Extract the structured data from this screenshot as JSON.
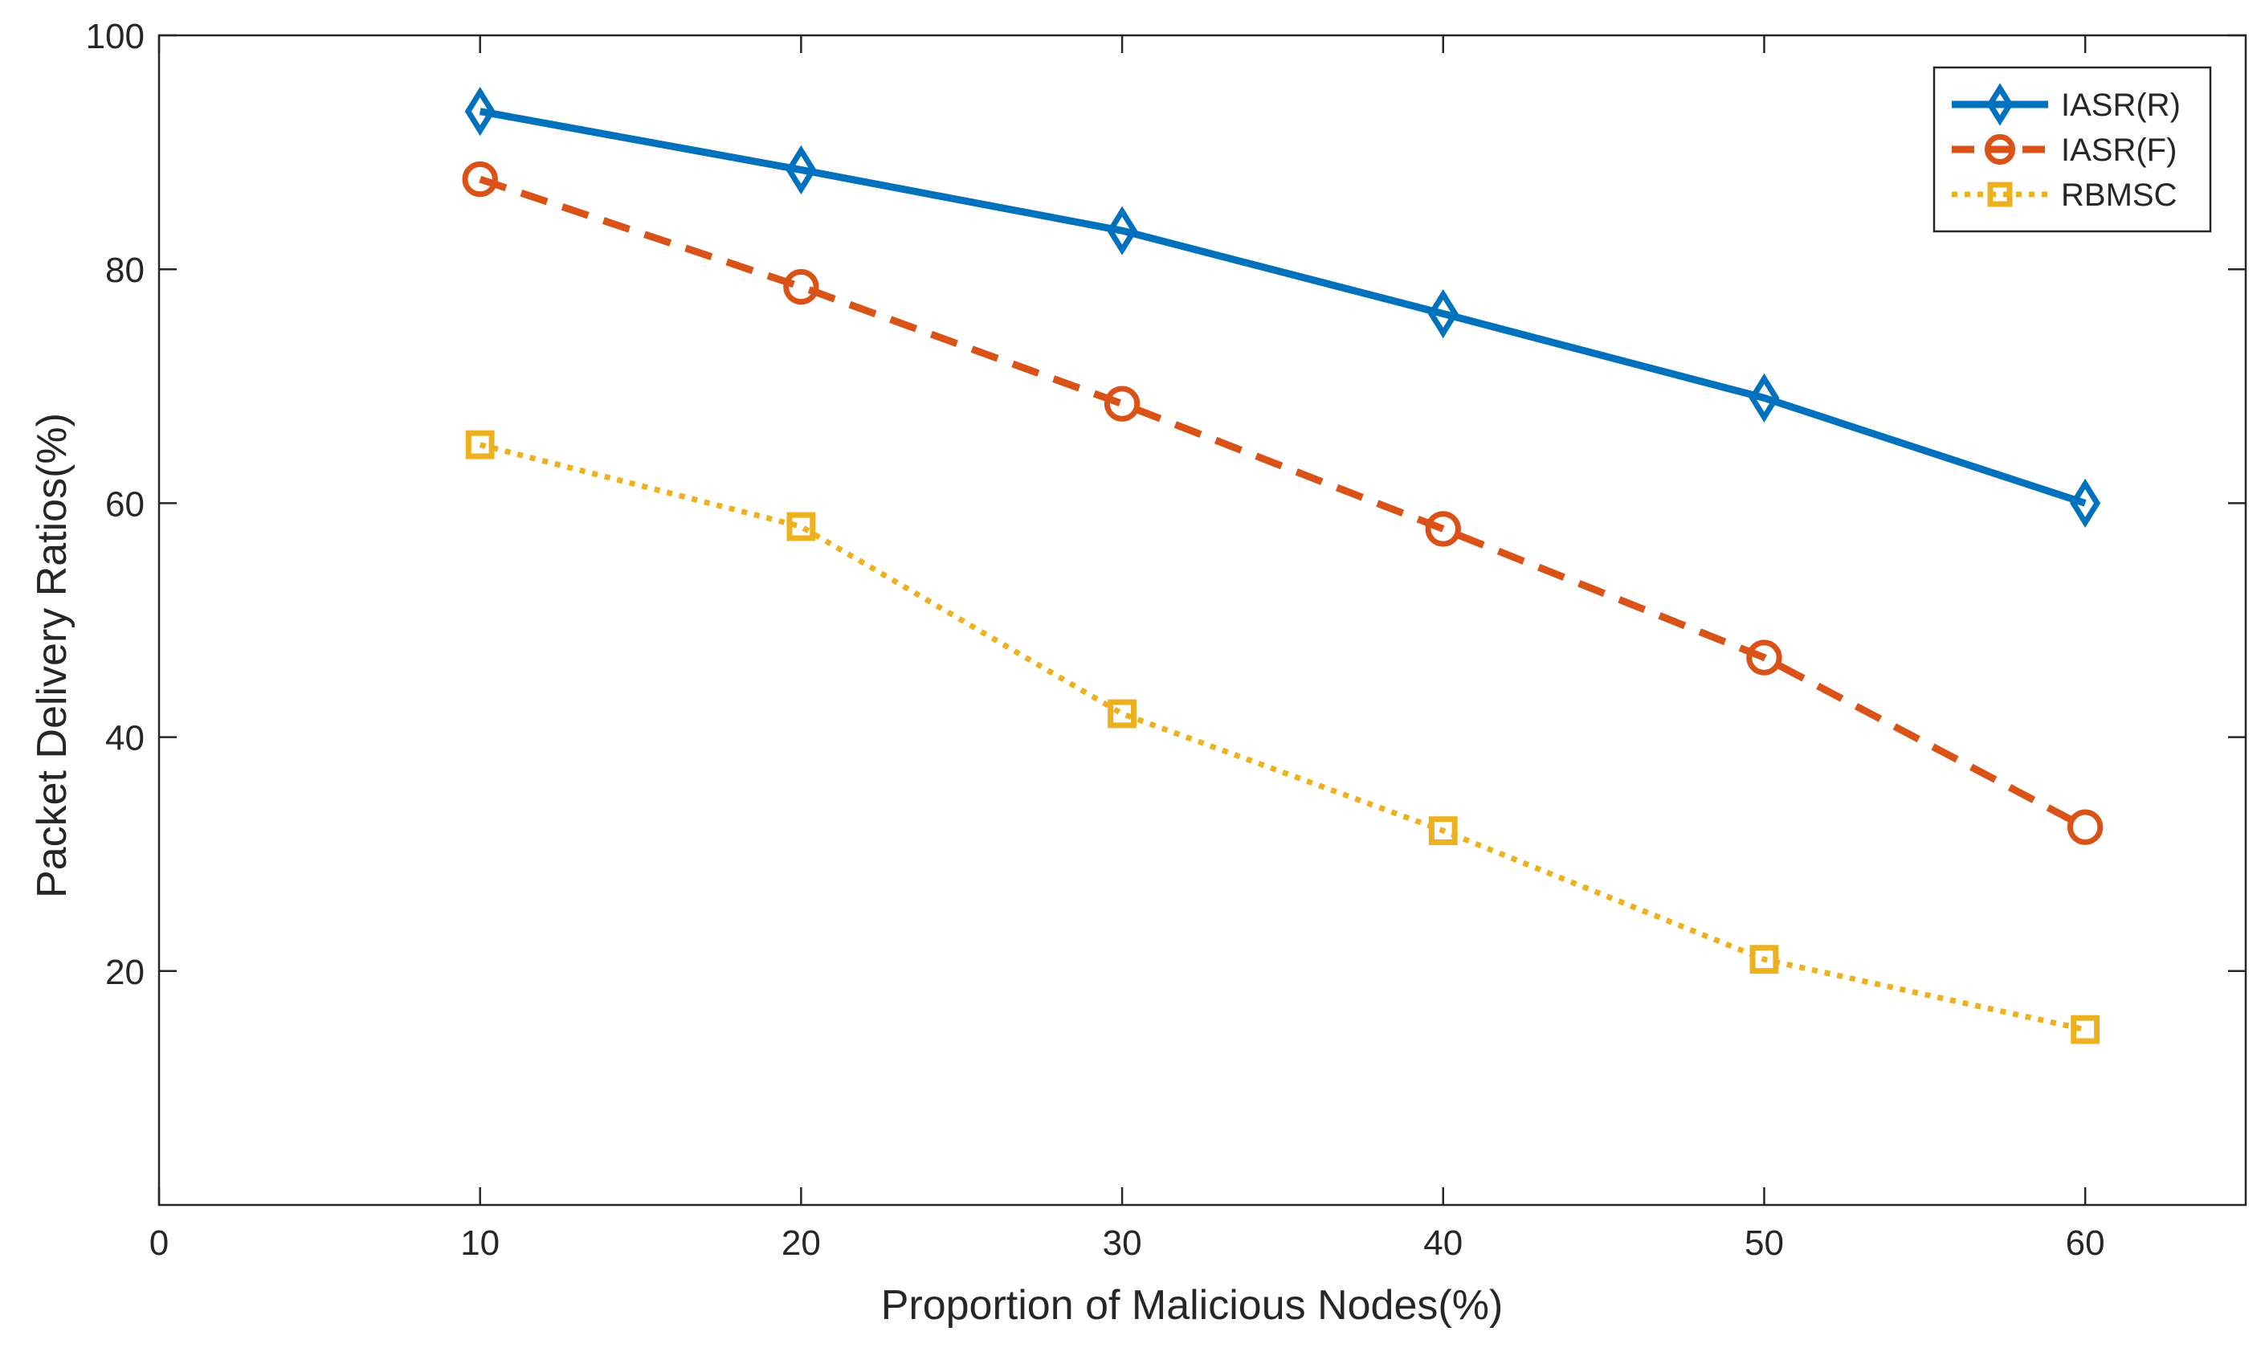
{
  "chart_data": {
    "type": "line",
    "title": "",
    "xlabel": "Proportion of Malicious Nodes(%)",
    "ylabel": "Packet  Delivery Ratios(%)",
    "xlim": [
      0,
      65
    ],
    "ylim": [
      0,
      100
    ],
    "xticks": [
      0,
      10,
      20,
      30,
      40,
      50,
      60
    ],
    "yticks": [
      20,
      40,
      60,
      80,
      100
    ],
    "grid": false,
    "legend_position": "top-right",
    "x": [
      10,
      20,
      30,
      40,
      50,
      60
    ],
    "series": [
      {
        "name": "IASR(R)",
        "values": [
          93.5,
          88.5,
          83.3,
          76.2,
          69,
          60
        ],
        "color": "#0072BD",
        "line_style": "solid",
        "marker": "diamond"
      },
      {
        "name": "IASR(F)",
        "values": [
          87.7,
          78.5,
          68.5,
          57.8,
          46.8,
          32.3
        ],
        "color": "#D95319",
        "line_style": "dashed",
        "marker": "circle"
      },
      {
        "name": "RBMSC",
        "values": [
          65,
          58,
          42,
          32,
          21,
          15
        ],
        "color": "#EDB120",
        "line_style": "dotted",
        "marker": "square"
      }
    ]
  }
}
